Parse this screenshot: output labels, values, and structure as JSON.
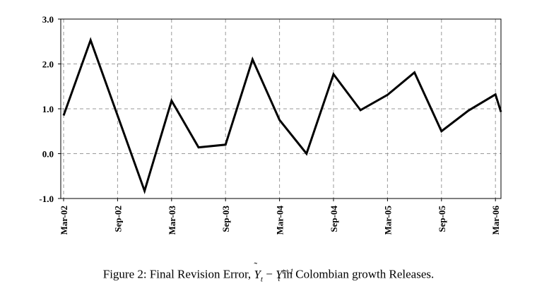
{
  "chart_data": {
    "type": "line",
    "x": [
      "Mar-02",
      "Jun-02",
      "Sep-02",
      "Dec-02",
      "Mar-03",
      "Jun-03",
      "Sep-03",
      "Dec-03",
      "Mar-04",
      "Jun-04",
      "Sep-04",
      "Dec-04",
      "Mar-05",
      "Jun-05",
      "Sep-05",
      "Dec-05",
      "Mar-06",
      "Apr-06"
    ],
    "x_tick_labels": [
      "Mar-02",
      "Sep-02",
      "Mar-03",
      "Sep-03",
      "Mar-04",
      "Sep-04",
      "Mar-05",
      "Sep-05",
      "Mar-06"
    ],
    "series": [
      {
        "values": [
          0.85,
          2.53,
          0.85,
          -0.83,
          1.18,
          0.14,
          0.2,
          2.1,
          0.75,
          0.0,
          1.77,
          0.97,
          1.31,
          1.81,
          0.5,
          0.96,
          1.32,
          0.93
        ]
      }
    ],
    "y_tick_labels": [
      "3.0",
      "2.0",
      "1.0",
      "0.0",
      "-1.0"
    ],
    "ylim": [
      -1.0,
      3.0
    ],
    "grid": true,
    "line_color": "#000000"
  },
  "caption": {
    "prefix": "Figure 2: Final Revision Error, ",
    "y_tilde": "Y",
    "sub_t1": "t",
    "minus": " − ",
    "y": "Y",
    "sup": "t+1",
    "sub_t2": "t",
    "suffix": " in Colombian growth Releases."
  }
}
